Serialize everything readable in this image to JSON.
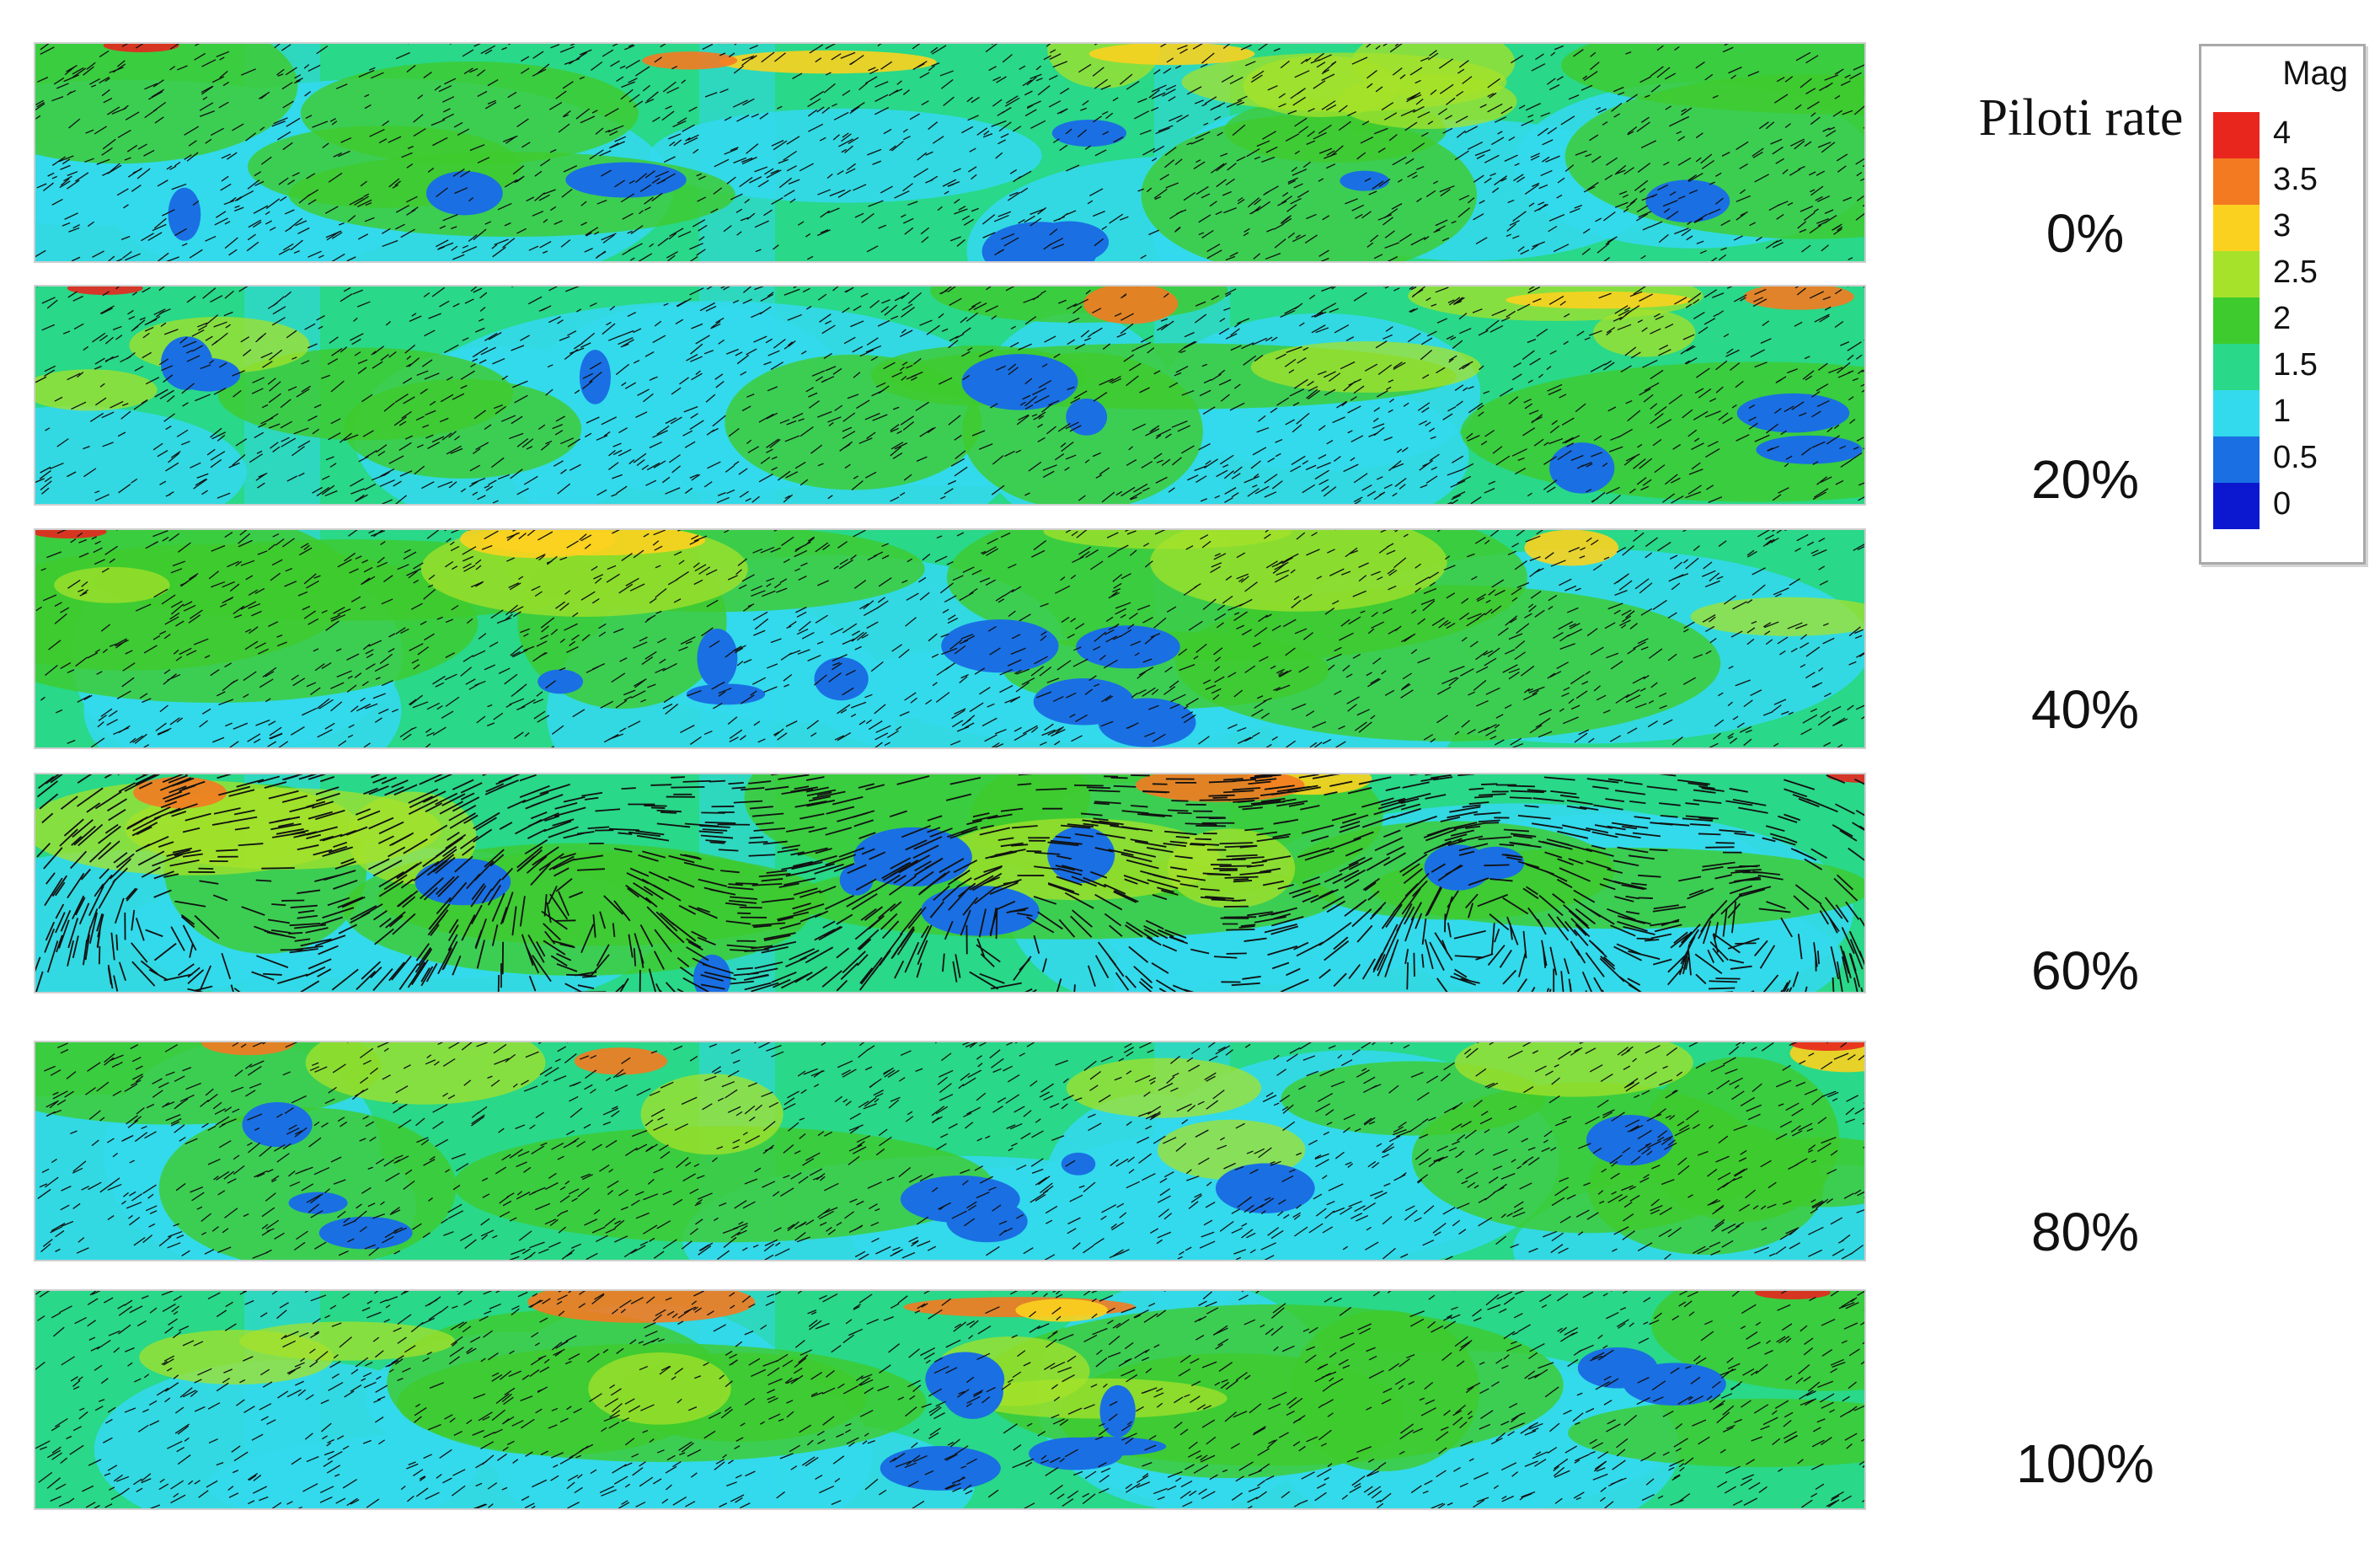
{
  "title": "Piloti rate",
  "panels": [
    {
      "label": "0%",
      "flow": "moderate"
    },
    {
      "label": "20%",
      "flow": "moderate"
    },
    {
      "label": "40%",
      "flow": "moderate"
    },
    {
      "label": "60%",
      "flow": "vortex"
    },
    {
      "label": "80%",
      "flow": "moderate"
    },
    {
      "label": "100%",
      "flow": "moderate"
    }
  ],
  "legend": {
    "name": "Mag",
    "ticks": [
      "4",
      "3.5",
      "3",
      "2.5",
      "2",
      "1.5",
      "1",
      "0.5",
      "0"
    ],
    "colors": [
      "#e8261e",
      "#f47a21",
      "#fbd11f",
      "#a6e22a",
      "#3ecb2d",
      "#29d888",
      "#33d9ec",
      "#1a6fe3",
      "#0b18cf"
    ]
  },
  "colors": {
    "vector": "#111111",
    "base_field": "#2fd6b0"
  }
}
